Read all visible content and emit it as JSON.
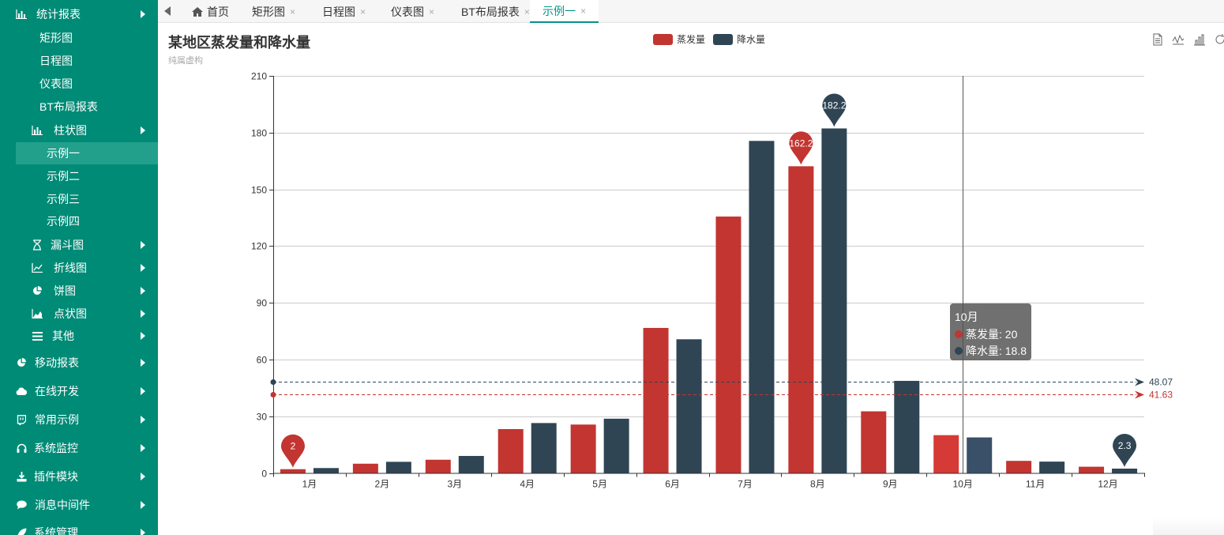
{
  "sidebar": {
    "items": [
      {
        "label": "统计报表",
        "icon": "bar-chart-icon",
        "arrow": true
      },
      {
        "label": "矩形图",
        "arrow": false
      },
      {
        "label": "日程图",
        "arrow": false
      },
      {
        "label": "仪表图",
        "arrow": false
      },
      {
        "label": "BT布局报表",
        "arrow": false
      },
      {
        "label": "柱状图",
        "icon": "bar-chart-icon",
        "arrow": true
      },
      {
        "label": "示例一",
        "arrow": false,
        "active": true
      },
      {
        "label": "示例二",
        "arrow": false
      },
      {
        "label": "示例三",
        "arrow": false
      },
      {
        "label": "示例四",
        "arrow": false
      },
      {
        "label": "漏斗图",
        "icon": "hourglass-icon",
        "arrow": true
      },
      {
        "label": "折线图",
        "icon": "line-chart-icon",
        "arrow": true
      },
      {
        "label": "饼图",
        "icon": "pie-chart-icon",
        "arrow": true
      },
      {
        "label": "点状图",
        "icon": "area-chart-icon",
        "arrow": true
      },
      {
        "label": "其他",
        "icon": "list-icon",
        "arrow": true
      },
      {
        "label": "移动报表",
        "icon": "pie-chart-icon",
        "arrow": true
      },
      {
        "label": "在线开发",
        "icon": "cloud-icon",
        "arrow": true
      },
      {
        "label": "常用示例",
        "icon": "twitch-icon",
        "arrow": true
      },
      {
        "label": "系统监控",
        "icon": "headphones-icon",
        "arrow": true
      },
      {
        "label": "插件模块",
        "icon": "download-icon",
        "arrow": true
      },
      {
        "label": "消息中间件",
        "icon": "comment-icon",
        "arrow": true
      },
      {
        "label": "系统管理",
        "icon": "leaf-icon",
        "arrow": true
      }
    ]
  },
  "tabs": [
    {
      "label": "首页",
      "closable": false,
      "icon": "home-icon"
    },
    {
      "label": "矩形图",
      "closable": true
    },
    {
      "label": "日程图",
      "closable": true
    },
    {
      "label": "仪表图",
      "closable": true
    },
    {
      "label": "BT布局报表",
      "closable": true
    },
    {
      "label": "示例一",
      "closable": true,
      "active": true
    }
  ],
  "close_glyph": "×",
  "chart": {
    "title": "某地区蒸发量和降水量",
    "subtitle": "纯属虚构"
  },
  "toolbox": [
    "data-view-icon",
    "line-chart-icon",
    "bar-chart-icon",
    "restore-icon"
  ],
  "tooltip": {
    "title": "10月",
    "rows": [
      {
        "text": "蒸发量: 20",
        "color": "#c23531"
      },
      {
        "text": "降水量: 18.8",
        "color": "#2f4554"
      }
    ]
  },
  "colors": {
    "evaporation": "#c23531",
    "precipitation": "#2f4554",
    "sidebar": "#008b77",
    "accent": "#009688"
  },
  "chart_data": {
    "type": "bar",
    "categories": [
      "1月",
      "2月",
      "3月",
      "4月",
      "5月",
      "6月",
      "7月",
      "8月",
      "9月",
      "10月",
      "11月",
      "12月"
    ],
    "series": [
      {
        "name": "蒸发量",
        "values": [
          2.0,
          4.9,
          7.0,
          23.2,
          25.6,
          76.7,
          135.6,
          162.2,
          32.6,
          20.0,
          6.4,
          3.3
        ],
        "markPoints": [
          {
            "label": "162.2",
            "index": 7
          },
          {
            "label": "2",
            "index": 0
          }
        ],
        "markLine": {
          "label": "41.63",
          "value": 41.63
        }
      },
      {
        "name": "降水量",
        "values": [
          2.6,
          5.9,
          9.0,
          26.4,
          28.7,
          70.7,
          175.6,
          182.2,
          48.7,
          18.8,
          6.0,
          2.3
        ],
        "markPoints": [
          {
            "label": "182.2",
            "index": 7
          },
          {
            "label": "2.3",
            "index": 11
          }
        ],
        "markLine": {
          "label": "48.07",
          "value": 48.07
        }
      }
    ],
    "yticks": [
      "0",
      "30",
      "60",
      "90",
      "120",
      "150",
      "180",
      "210"
    ],
    "ylim": [
      0,
      210
    ],
    "grid": true,
    "legend_position": "top-center",
    "hover_category": "10月"
  }
}
